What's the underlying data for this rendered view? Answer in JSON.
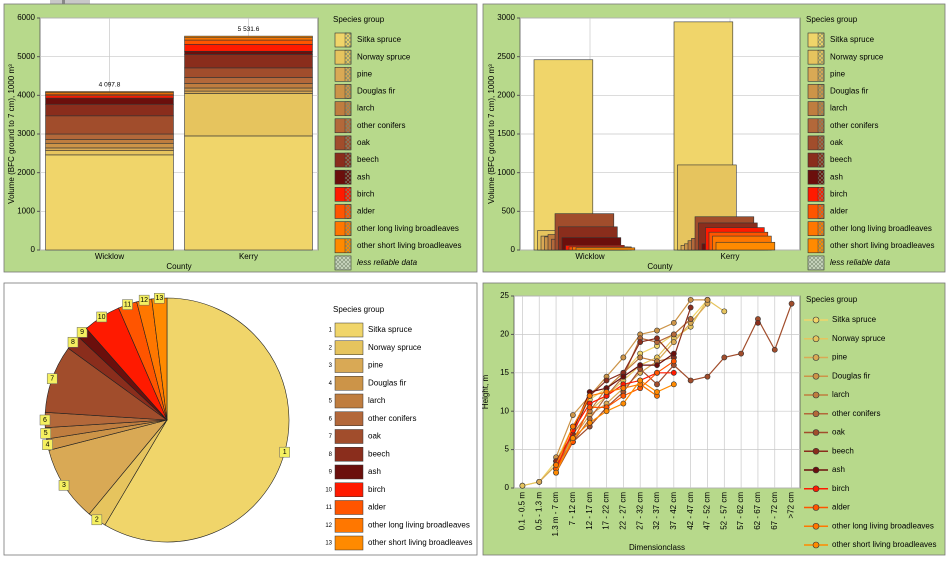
{
  "chart_data": [
    {
      "type": "stacked_bar",
      "categories": [
        "Wicklow",
        "Kerry"
      ],
      "series": [
        {
          "name": "Sitka spruce",
          "color": "#f0d56a",
          "values": [
            2460,
            2950
          ]
        },
        {
          "name": "Norway spruce",
          "color": "#e6c45e",
          "values": [
            110,
            1100
          ]
        },
        {
          "name": "pine",
          "color": "#d9a955",
          "values": [
            70,
            60
          ]
        },
        {
          "name": "Douglas fir",
          "color": "#cc9448",
          "values": [
            120,
            80
          ]
        },
        {
          "name": "larch",
          "color": "#bf7d3f",
          "values": [
            100,
            120
          ]
        },
        {
          "name": "other conifers",
          "color": "#b3683a",
          "values": [
            140,
            150
          ]
        },
        {
          "name": "oak",
          "color": "#a14d2c",
          "values": [
            470,
            250
          ]
        },
        {
          "name": "beech",
          "color": "#8a2d1c",
          "values": [
            300,
            350
          ]
        },
        {
          "name": "ash",
          "color": "#6b0f0c",
          "values": [
            160,
            80
          ]
        },
        {
          "name": "birch",
          "color": "#ff1a00",
          "values": [
            60,
            180
          ]
        },
        {
          "name": "alder",
          "color": "#ff5500",
          "values": [
            40,
            110
          ]
        },
        {
          "name": "other long living broadleaves",
          "color": "#ff7700",
          "values": [
            40,
            60
          ]
        },
        {
          "name": "other short living broadleaves",
          "color": "#ff8a00",
          "values": [
            27.8,
            41.6
          ]
        }
      ],
      "totals": {
        "values": [
          4097.8,
          5531.6
        ],
        "value_labels": [
          "4 097.8",
          "5 531.6"
        ]
      },
      "ylim": [
        0,
        6000
      ],
      "yticks": [
        0,
        1000,
        2000,
        3000,
        4000,
        5000,
        6000
      ],
      "xlabel": "County",
      "ylabel": "Volume (BFC ground to 7 cm), 1000 m³",
      "legend_title": "Species group",
      "legend_note": "less reliable data",
      "grid": true
    },
    {
      "type": "overlap_bar",
      "categories": [
        "Wicklow",
        "Kerry"
      ],
      "series": [
        {
          "name": "Sitka spruce",
          "color": "#f0d56a",
          "values": [
            2460,
            2950
          ]
        },
        {
          "name": "Norway spruce",
          "color": "#e6c45e",
          "values": [
            250,
            1100
          ]
        },
        {
          "name": "pine",
          "color": "#d9a955",
          "values": [
            180,
            60
          ]
        },
        {
          "name": "Douglas fir",
          "color": "#cc9448",
          "values": [
            170,
            80
          ]
        },
        {
          "name": "larch",
          "color": "#bf7d3f",
          "values": [
            200,
            120
          ]
        },
        {
          "name": "other conifers",
          "color": "#b3683a",
          "values": [
            140,
            150
          ]
        },
        {
          "name": "oak",
          "color": "#a14d2c",
          "values": [
            470,
            430
          ]
        },
        {
          "name": "beech",
          "color": "#8a2d1c",
          "values": [
            300,
            350
          ]
        },
        {
          "name": "ash",
          "color": "#6b0f0c",
          "values": [
            160,
            80
          ]
        },
        {
          "name": "birch",
          "color": "#ff1a00",
          "values": [
            60,
            290
          ]
        },
        {
          "name": "alder",
          "color": "#ff5500",
          "values": [
            40,
            230
          ]
        },
        {
          "name": "other long living broadleaves",
          "color": "#ff7700",
          "values": [
            40,
            180
          ]
        },
        {
          "name": "other short living broadleaves",
          "color": "#ff8a00",
          "values": [
            27.8,
            100
          ]
        }
      ],
      "ylim": [
        0,
        3000
      ],
      "yticks": [
        0,
        500,
        1000,
        1500,
        2000,
        2500,
        3000
      ],
      "xlabel": "County",
      "ylabel": "Volume (BFC ground to 7 cm), 1000 m³",
      "legend_title": "Species group",
      "legend_note": "less reliable data",
      "grid": true
    },
    {
      "type": "pie",
      "categories": [
        "Sitka spruce",
        "Norway spruce",
        "pine",
        "Douglas fir",
        "larch",
        "other conifers",
        "oak",
        "beech",
        "ash",
        "birch",
        "alder",
        "other long living broadleaves",
        "other short living broadleaves"
      ],
      "values": [
        58.5,
        2.5,
        10,
        1.5,
        1.5,
        2,
        9,
        2,
        1.5,
        5,
        2.5,
        2,
        2
      ],
      "colors": [
        "#f0d56a",
        "#e6c45e",
        "#d9a955",
        "#cc9448",
        "#bf7d3f",
        "#b3683a",
        "#a14d2c",
        "#8a2d1c",
        "#6b0f0c",
        "#ff1a00",
        "#ff5500",
        "#ff7700",
        "#ff8a00"
      ],
      "slice_labels": [
        "1",
        "2",
        "3",
        "4",
        "5",
        "6",
        "7",
        "8",
        "9",
        "10",
        "11",
        "12",
        "13"
      ],
      "legend_title": "Species group"
    },
    {
      "type": "line",
      "categories": [
        "0.1 - 0.5 m",
        "0.5 - 1.3 m",
        "1.3 m - 7 cm",
        "7 - 12 cm",
        "12 - 17 cm",
        "17 - 22 cm",
        "22 - 27 cm",
        "27 - 32 cm",
        "32 - 37 cm",
        "37 - 42 cm",
        "42 - 47 cm",
        "47 - 52 cm",
        "52 - 57 cm",
        "57 - 62 cm",
        "62 - 67 cm",
        "67 - 72 cm",
        ">72 cm"
      ],
      "series": [
        {
          "name": "Sitka spruce",
          "color": "#f0d56a",
          "values": [
            0.3,
            0.8,
            3.5,
            8,
            11.5,
            13,
            15,
            17.5,
            18.5,
            20,
            22,
            24.5,
            null,
            null,
            null,
            null,
            null
          ]
        },
        {
          "name": "Norway spruce",
          "color": "#e6c45e",
          "values": [
            0.3,
            0.8,
            3,
            7,
            10,
            12,
            14,
            16,
            17,
            19.5,
            21,
            24.5,
            23,
            null,
            null,
            null,
            null
          ]
        },
        {
          "name": "pine",
          "color": "#d9a955",
          "values": [
            null,
            0.8,
            3,
            6.5,
            9.5,
            11,
            13,
            15,
            16.5,
            19,
            21.5,
            24,
            null,
            null,
            null,
            null,
            null
          ]
        },
        {
          "name": "Douglas fir",
          "color": "#cc9448",
          "values": [
            null,
            null,
            4,
            9.5,
            12,
            14.5,
            17,
            20,
            20.5,
            21.5,
            24.5,
            24.5,
            null,
            null,
            null,
            null,
            null
          ]
        },
        {
          "name": "larch",
          "color": "#bf7d3f",
          "values": [
            null,
            null,
            2.5,
            7,
            10,
            13,
            15,
            17,
            16.5,
            17,
            null,
            null,
            null,
            null,
            null,
            null,
            null
          ]
        },
        {
          "name": "other conifers",
          "color": "#b3683a",
          "values": [
            null,
            null,
            3,
            6,
            9,
            12,
            14.5,
            19.5,
            19,
            20,
            22,
            null,
            null,
            null,
            null,
            null,
            null
          ]
        },
        {
          "name": "oak",
          "color": "#a14d2c",
          "values": [
            null,
            null,
            2,
            6,
            8,
            10.5,
            12.5,
            15.5,
            13.5,
            16,
            14,
            14.5,
            17,
            17.5,
            22,
            18,
            24
          ]
        },
        {
          "name": "beech",
          "color": "#8a2d1c",
          "values": [
            null,
            null,
            3.5,
            7,
            12,
            14,
            15,
            19,
            19.5,
            17,
            23.5,
            null,
            null,
            null,
            21.5,
            null,
            null
          ]
        },
        {
          "name": "ash",
          "color": "#6b0f0c",
          "values": [
            null,
            null,
            null,
            7.5,
            12.5,
            13,
            14.5,
            16,
            16,
            17.5,
            null,
            null,
            null,
            null,
            null,
            null,
            null
          ]
        },
        {
          "name": "birch",
          "color": "#ff1a00",
          "values": [
            null,
            null,
            2.5,
            7.5,
            11,
            12,
            13.5,
            14,
            15,
            15,
            null,
            null,
            null,
            null,
            null,
            null,
            null
          ]
        },
        {
          "name": "alder",
          "color": "#ff5500",
          "values": [
            null,
            null,
            2.5,
            6,
            10.5,
            10.5,
            12,
            13,
            15,
            16.5,
            null,
            null,
            null,
            null,
            null,
            null,
            null
          ]
        },
        {
          "name": "other long living broadleaves",
          "color": "#ff7700",
          "values": [
            null,
            null,
            3,
            8,
            12,
            12.5,
            13,
            13.5,
            12,
            null,
            null,
            null,
            null,
            null,
            null,
            null,
            null
          ]
        },
        {
          "name": "other short living broadleaves",
          "color": "#ff8a00",
          "values": [
            null,
            null,
            2,
            6.5,
            8.5,
            10,
            11,
            14,
            12.5,
            13.5,
            null,
            null,
            null,
            null,
            null,
            null,
            null
          ]
        }
      ],
      "ylim": [
        0,
        25
      ],
      "yticks": [
        0,
        5,
        10,
        15,
        20,
        25
      ],
      "xlabel": "Dimensionclass",
      "ylabel": "Height, m",
      "legend_title": "Species group",
      "grid": true
    }
  ]
}
